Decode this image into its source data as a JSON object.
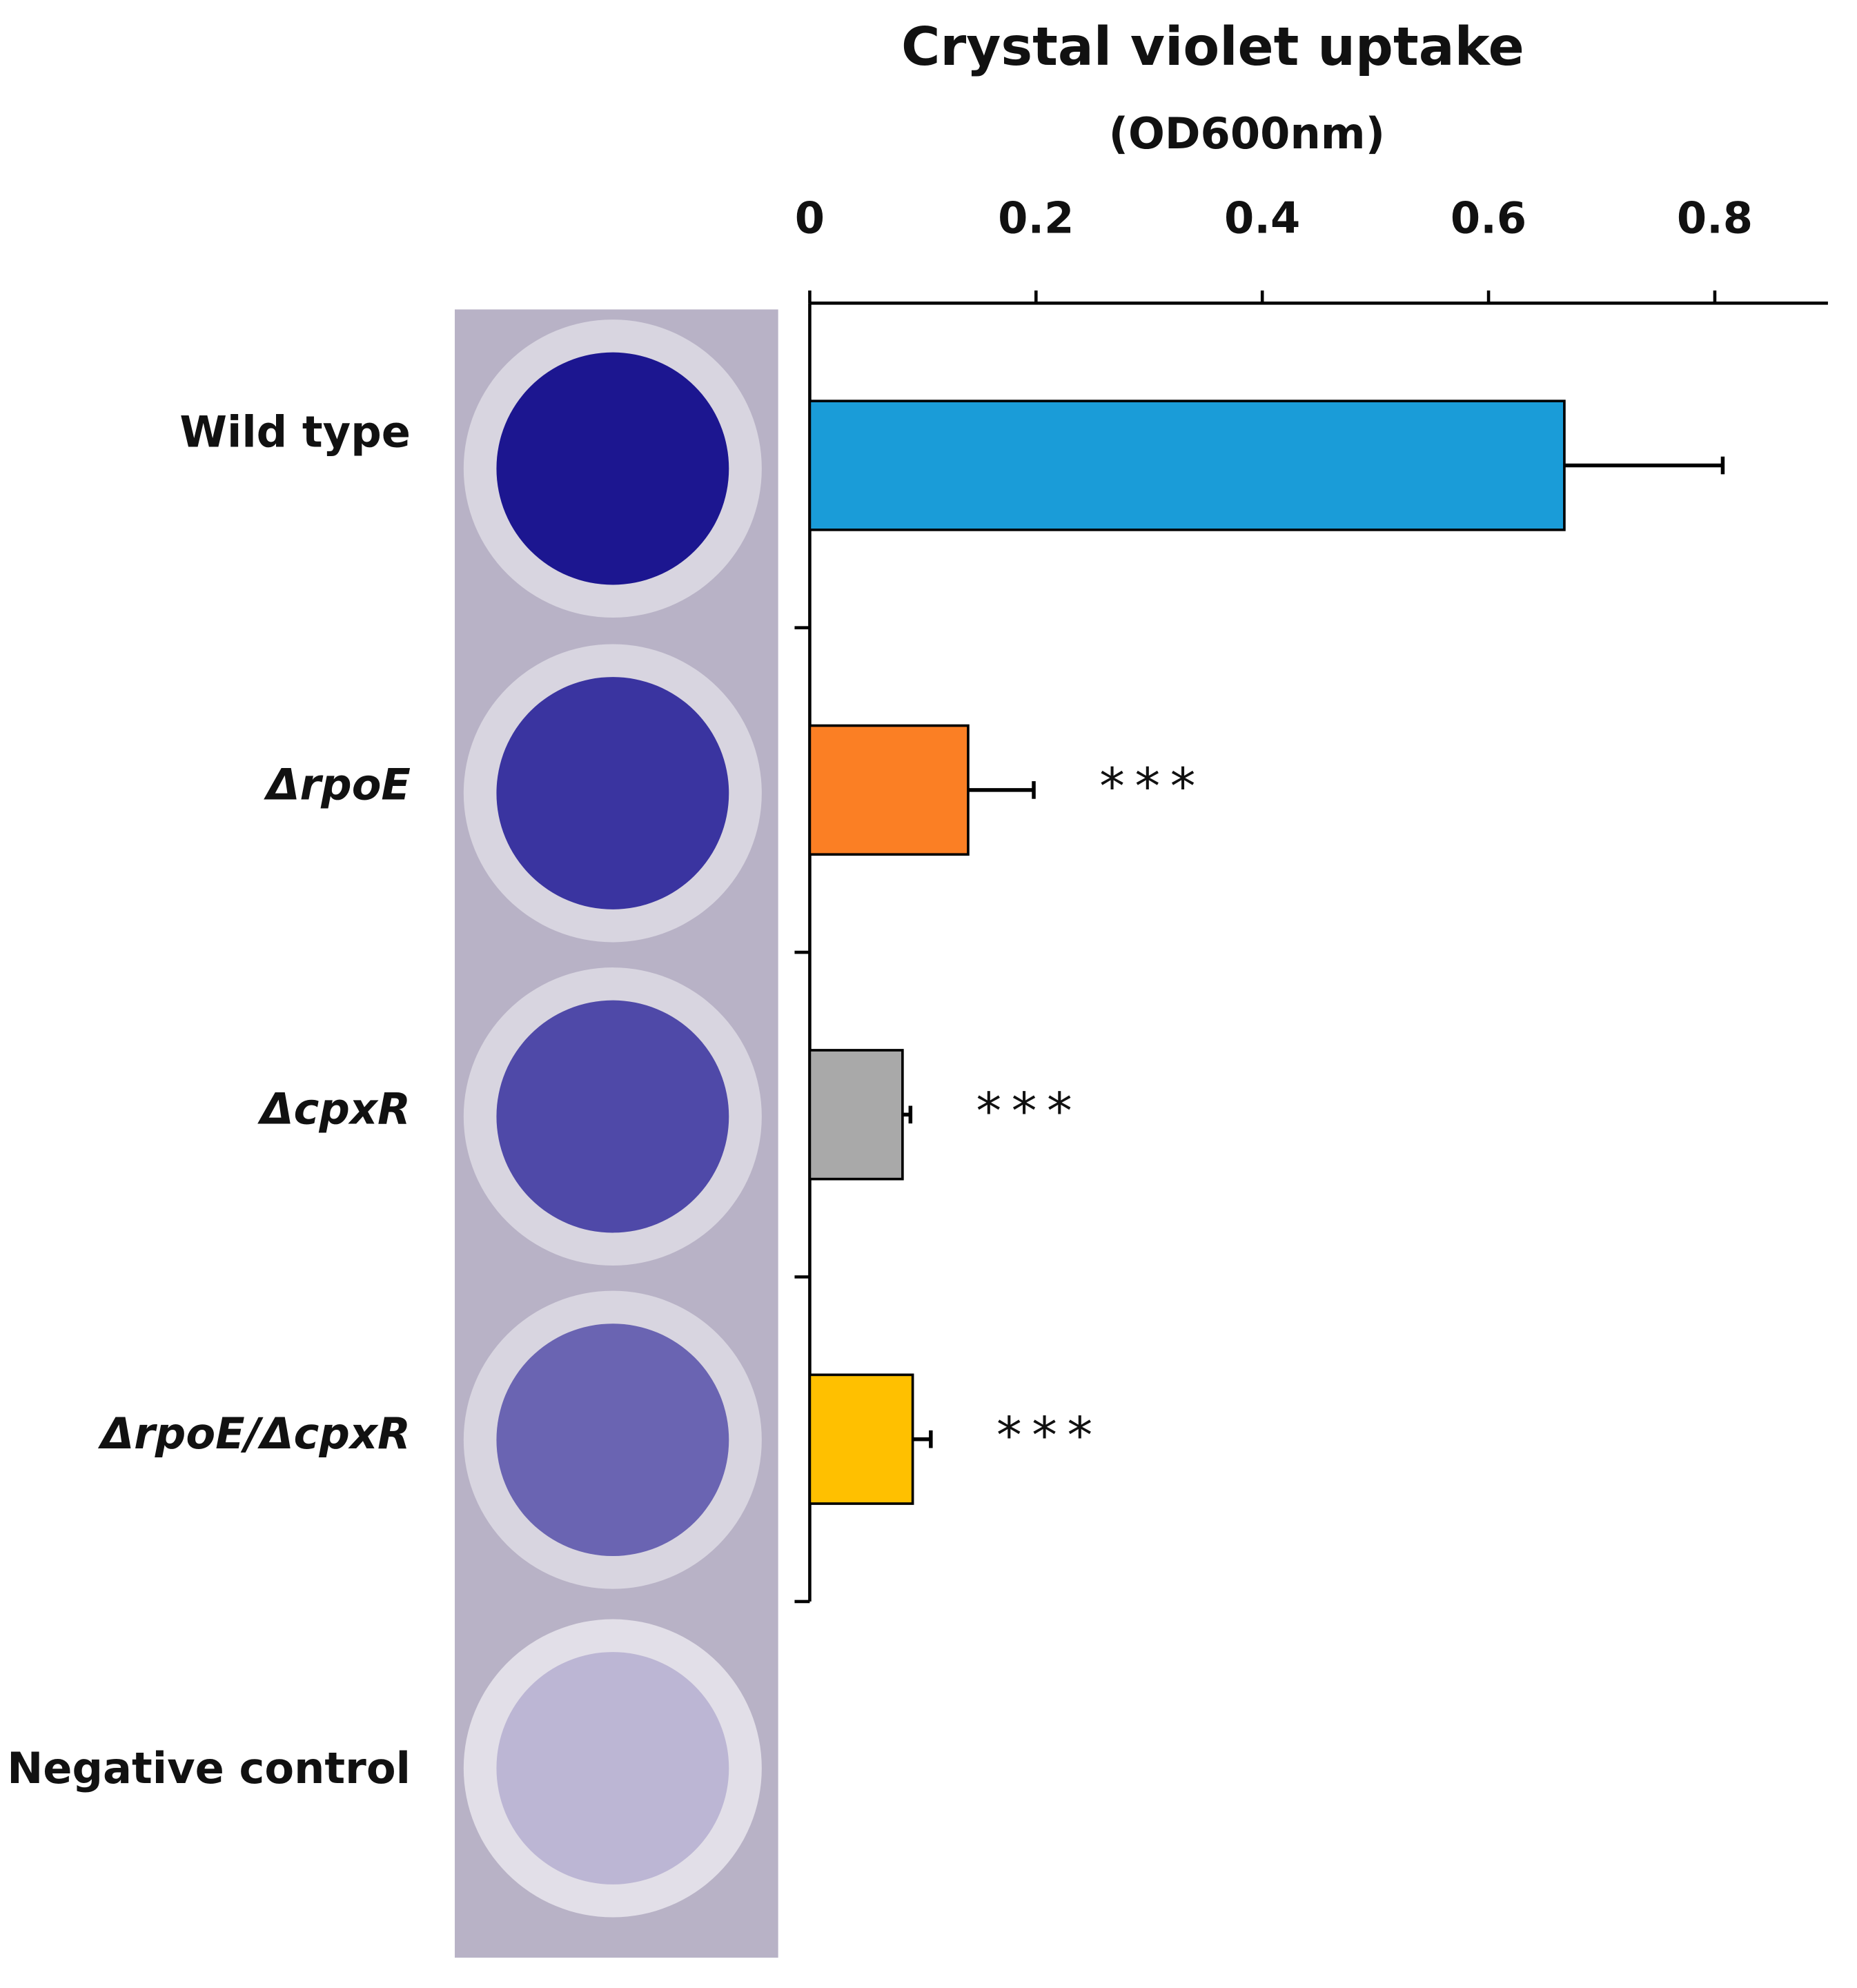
{
  "chart_data": {
    "type": "bar",
    "orientation": "horizontal",
    "title": "Crystal violet uptake",
    "xlabel": "(OD600nm)",
    "categories": [
      "Wild type",
      "ΔrpoE",
      "ΔcpxR",
      "ΔrpoE/ΔcpxR",
      "Negative control"
    ],
    "values": [
      0.667,
      0.14,
      0.082,
      0.091,
      null
    ],
    "errors": [
      0.14,
      0.058,
      0.007,
      0.016,
      null
    ],
    "colors": [
      "#1a9cd8",
      "#fb7f24",
      "#a9a9a9",
      "#ffc000",
      null
    ],
    "annotations": [
      null,
      "***",
      "***",
      "***",
      null
    ],
    "xlim": [
      0,
      0.9
    ],
    "xticks": [
      0,
      0.2,
      0.4,
      0.6,
      0.8
    ]
  }
}
